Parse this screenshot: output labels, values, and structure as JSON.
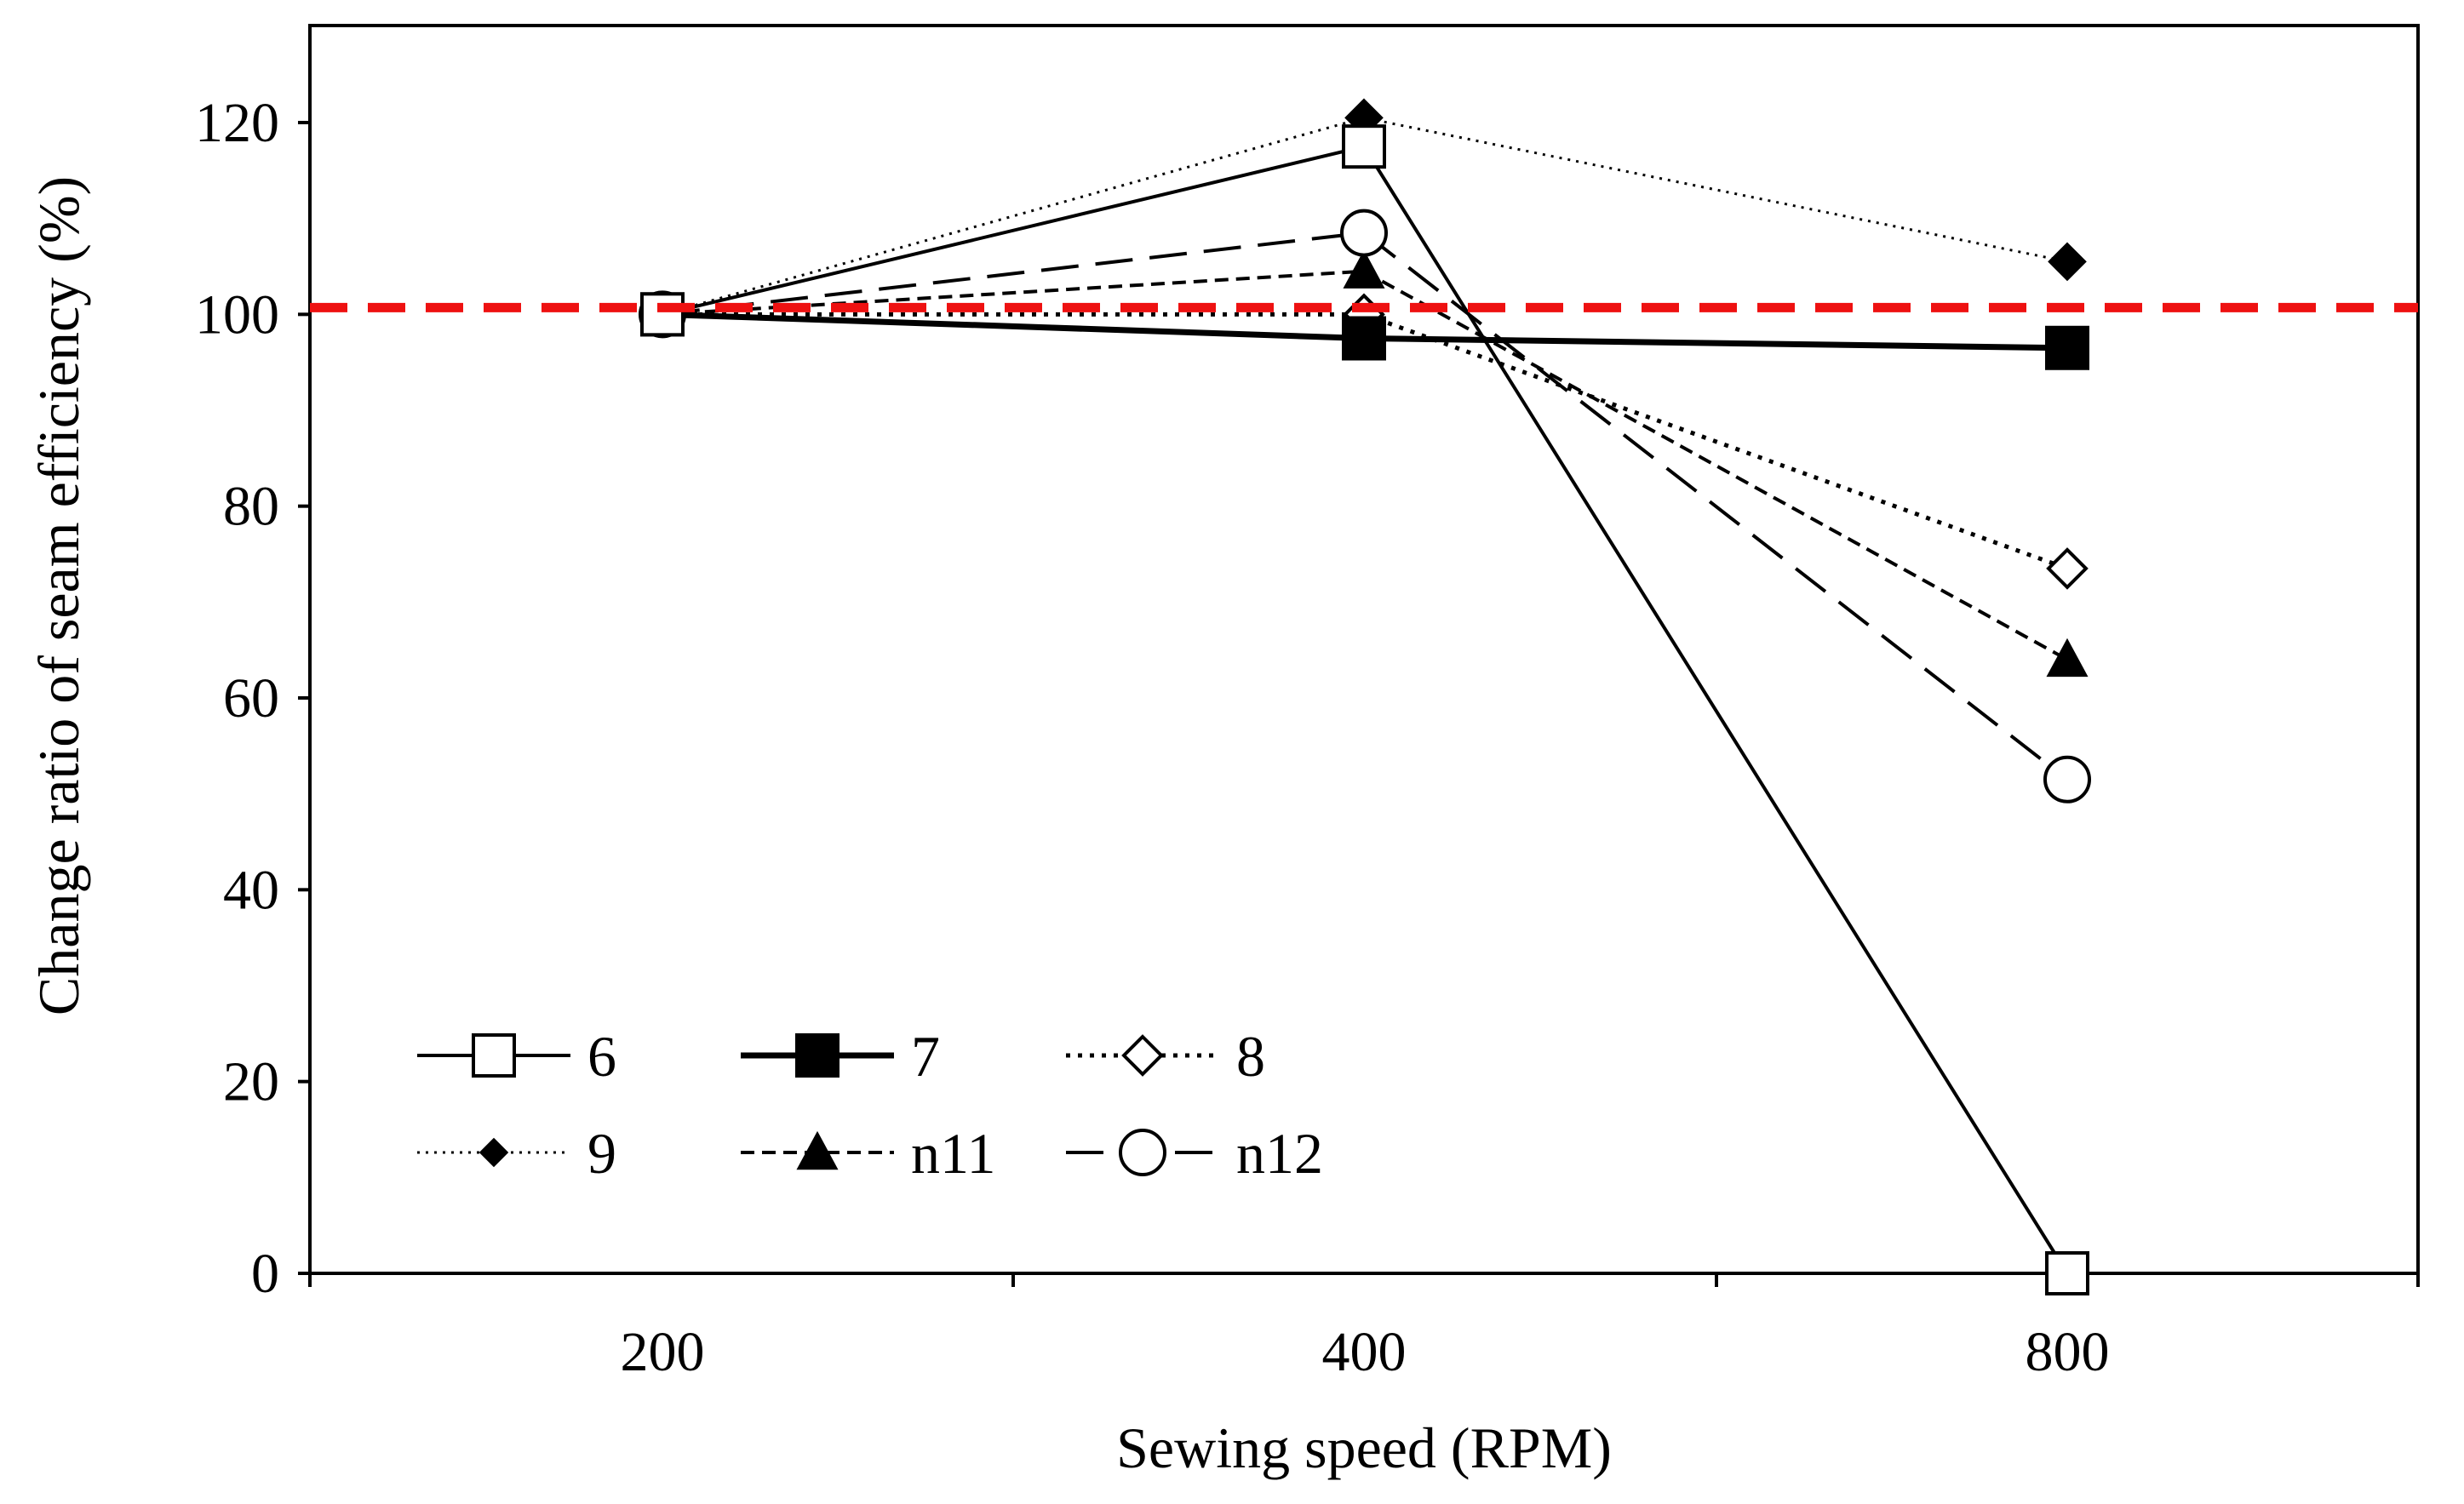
{
  "chart_data": {
    "type": "line",
    "title": "",
    "xlabel": "Sewing speed (RPM)",
    "ylabel": "Change ratio of seam efficiency (%)",
    "categories": [
      "200",
      "400",
      "800"
    ],
    "ylim": [
      0,
      130
    ],
    "yticks": [
      0,
      20,
      40,
      60,
      80,
      100,
      120
    ],
    "reference_line": {
      "y": 100,
      "color": "#ee1111",
      "style": "dashed"
    },
    "grid": false,
    "legend_position": "bottom-left",
    "series": [
      {
        "name": "6",
        "values": [
          100,
          117.5,
          0
        ],
        "marker": "square-open",
        "line": "solid-thin"
      },
      {
        "name": "7",
        "values": [
          100,
          97.5,
          96.5
        ],
        "marker": "square-filled",
        "line": "solid-thick"
      },
      {
        "name": "8",
        "values": [
          100,
          100,
          73.5
        ],
        "marker": "diamond-open",
        "line": "dotted"
      },
      {
        "name": "9",
        "values": [
          100,
          120.5,
          105.5
        ],
        "marker": "diamond-filled",
        "line": "fine-dotted"
      },
      {
        "name": "n11",
        "values": [
          100,
          104.5,
          64
        ],
        "marker": "triangle-filled",
        "line": "short-dash"
      },
      {
        "name": "n12",
        "values": [
          100,
          108.5,
          51.5
        ],
        "marker": "circle-open",
        "line": "long-dash"
      }
    ]
  }
}
